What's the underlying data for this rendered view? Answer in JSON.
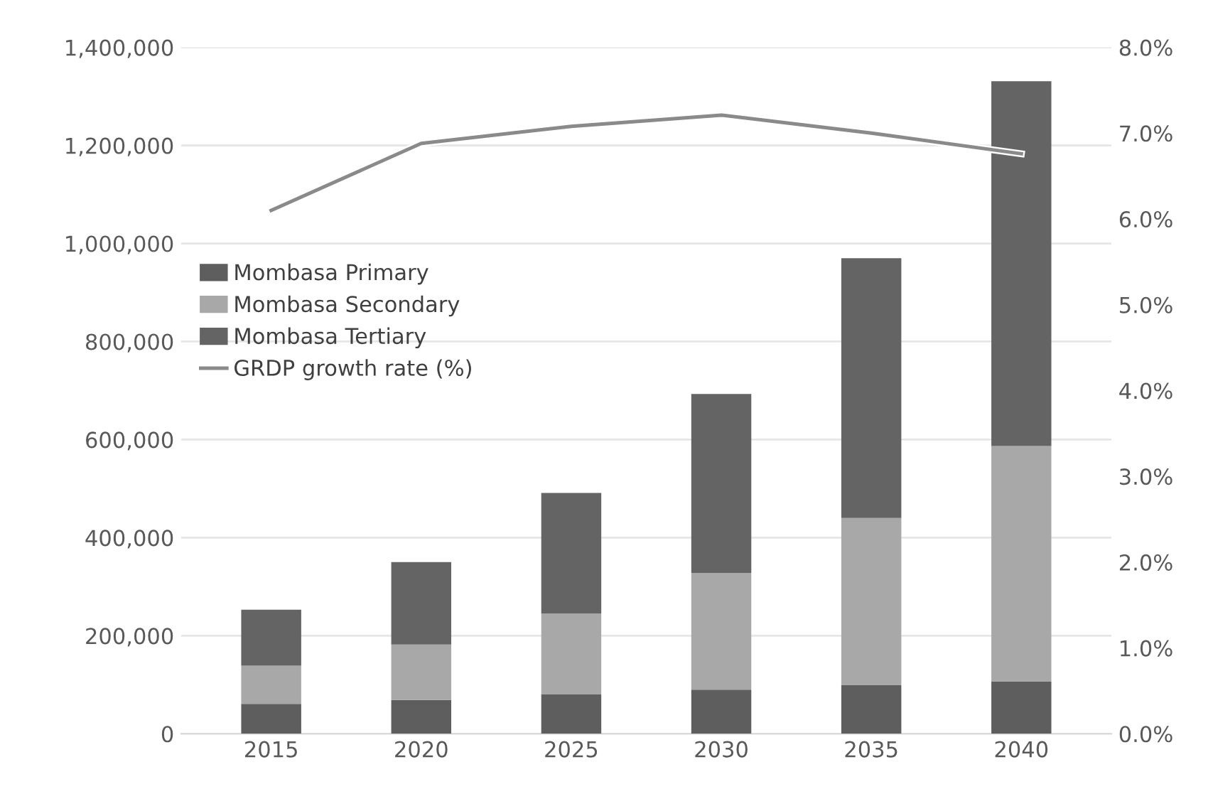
{
  "chart_data": {
    "type": "bar",
    "stacked": true,
    "categories": [
      "2015",
      "2020",
      "2025",
      "2030",
      "2035",
      "2040"
    ],
    "series": [
      {
        "name": "Mombasa Primary",
        "color": "#5e5e5e",
        "values": [
          61000,
          69000,
          80000,
          90000,
          99000,
          107000
        ]
      },
      {
        "name": "Mombasa Secondary",
        "color": "#a8a8a8",
        "values": [
          78000,
          113000,
          165000,
          238000,
          341000,
          480000
        ]
      },
      {
        "name": "Mombasa Tertiary",
        "color": "#646464",
        "values": [
          114000,
          168000,
          246000,
          365000,
          530000,
          744000
        ]
      },
      {
        "name": "GRDP growth rate (%)",
        "type": "line",
        "axis": "y2",
        "color": "#8a8a8a",
        "marker": "none",
        "values": [
          6.1,
          6.88,
          7.08,
          7.21,
          7.0,
          6.76
        ]
      }
    ],
    "ylim": [
      0,
      1400000
    ],
    "yticks": [
      {
        "value": 0,
        "label": "0"
      },
      {
        "value": 200000,
        "label": "200,000"
      },
      {
        "value": 400000,
        "label": "400,000"
      },
      {
        "value": 600000,
        "label": "600,000"
      },
      {
        "value": 800000,
        "label": "800,000"
      },
      {
        "value": 1000000,
        "label": "1,000,000"
      },
      {
        "value": 1200000,
        "label": "1,200,000"
      },
      {
        "value": 1400000,
        "label": "1,400,000"
      }
    ],
    "y2lim": [
      0,
      8
    ],
    "y2ticks": [
      {
        "value": 0,
        "label": "0.0%"
      },
      {
        "value": 1,
        "label": "1.0%"
      },
      {
        "value": 2,
        "label": "2.0%"
      },
      {
        "value": 3,
        "label": "3.0%"
      },
      {
        "value": 4,
        "label": "4.0%"
      },
      {
        "value": 5,
        "label": "5.0%"
      },
      {
        "value": 6,
        "label": "6.0%"
      },
      {
        "value": 7,
        "label": "7.0%"
      },
      {
        "value": 8,
        "label": "8.0%"
      }
    ],
    "grid": "y",
    "legend": "center left"
  }
}
